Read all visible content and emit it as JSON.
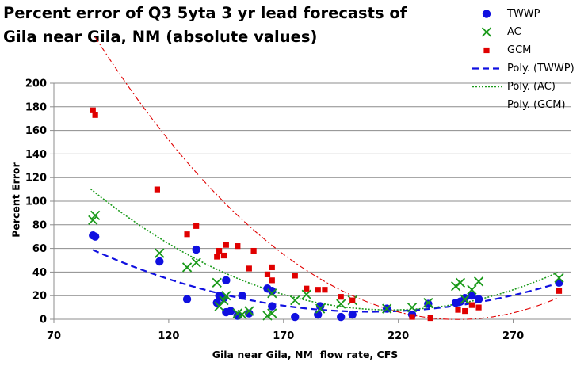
{
  "chart_data": {
    "type": "scatter",
    "title": "Percent error of Q3 5yta 3 yr lead forecasts of Gila near Gila, NM (absolute values)",
    "xlabel": "Gila near Gila, NM  flow rate, CFS",
    "ylabel": "Percent Error",
    "xlim": [
      70,
      295
    ],
    "ylim": [
      0,
      200
    ],
    "xticks": [
      70,
      120,
      170,
      220,
      270
    ],
    "yticks": [
      0,
      20,
      40,
      60,
      80,
      100,
      120,
      140,
      160,
      180,
      200
    ],
    "grid": "horizontal",
    "legend_position": "top-right",
    "series": [
      {
        "name": "TWWP",
        "marker": "circle",
        "color": "#1010e0",
        "points": [
          [
            87,
            71
          ],
          [
            88,
            70
          ],
          [
            116,
            49
          ],
          [
            128,
            17
          ],
          [
            132,
            59
          ],
          [
            141,
            14
          ],
          [
            142,
            20
          ],
          [
            144,
            18
          ],
          [
            145,
            33
          ],
          [
            145,
            6
          ],
          [
            147,
            7
          ],
          [
            150,
            3
          ],
          [
            152,
            20
          ],
          [
            155,
            5
          ],
          [
            163,
            26
          ],
          [
            165,
            24
          ],
          [
            165,
            11
          ],
          [
            175,
            2
          ],
          [
            185,
            4
          ],
          [
            186,
            11
          ],
          [
            195,
            2
          ],
          [
            200,
            4
          ],
          [
            215,
            9
          ],
          [
            226,
            4
          ],
          [
            233,
            13
          ],
          [
            245,
            14
          ],
          [
            247,
            15
          ],
          [
            249,
            18
          ],
          [
            252,
            20
          ],
          [
            255,
            17
          ],
          [
            290,
            31
          ]
        ]
      },
      {
        "name": "AC",
        "marker": "x",
        "color": "#1a9a1a",
        "points": [
          [
            87,
            84
          ],
          [
            88,
            88
          ],
          [
            116,
            56
          ],
          [
            128,
            44
          ],
          [
            132,
            48
          ],
          [
            141,
            31
          ],
          [
            142,
            11
          ],
          [
            144,
            16
          ],
          [
            145,
            20
          ],
          [
            150,
            5
          ],
          [
            152,
            4
          ],
          [
            155,
            7
          ],
          [
            163,
            3
          ],
          [
            165,
            5
          ],
          [
            165,
            22
          ],
          [
            175,
            16
          ],
          [
            180,
            21
          ],
          [
            186,
            9
          ],
          [
            195,
            13
          ],
          [
            200,
            16
          ],
          [
            215,
            9
          ],
          [
            226,
            10
          ],
          [
            233,
            14
          ],
          [
            245,
            28
          ],
          [
            247,
            31
          ],
          [
            249,
            17
          ],
          [
            252,
            25
          ],
          [
            255,
            32
          ],
          [
            290,
            35
          ]
        ]
      },
      {
        "name": "GCM",
        "marker": "square",
        "color": "#e00000",
        "points": [
          [
            87,
            177
          ],
          [
            88,
            173
          ],
          [
            115,
            110
          ],
          [
            128,
            72
          ],
          [
            132,
            79
          ],
          [
            141,
            53
          ],
          [
            142,
            58
          ],
          [
            144,
            54
          ],
          [
            145,
            63
          ],
          [
            150,
            62
          ],
          [
            155,
            43
          ],
          [
            157,
            58
          ],
          [
            163,
            38
          ],
          [
            165,
            44
          ],
          [
            165,
            33
          ],
          [
            175,
            37
          ],
          [
            180,
            26
          ],
          [
            185,
            25
          ],
          [
            188,
            25
          ],
          [
            195,
            19
          ],
          [
            200,
            16
          ],
          [
            226,
            2
          ],
          [
            234,
            1
          ],
          [
            246,
            8
          ],
          [
            249,
            7
          ],
          [
            252,
            12
          ],
          [
            255,
            10
          ],
          [
            290,
            24
          ]
        ]
      }
    ],
    "trendlines": [
      {
        "name": "Poly. (TWWP)",
        "style": "dashed",
        "color": "#1010e0",
        "coef": [
          0.0036,
          -1.495,
          161.6
        ],
        "xrange": [
          87,
          290
        ]
      },
      {
        "name": "Poly. (AC)",
        "style": "dotted",
        "color": "#1a9a1a",
        "coef": [
          0.006,
          -2.6,
          289.6
        ],
        "xrange": [
          86,
          290
        ]
      },
      {
        "name": "Poly. (GCM)",
        "style": "dashdot",
        "color": "#e00000",
        "coef": [
          0.0096,
          -4.72,
          580.0
        ],
        "xrange": [
          88,
          290
        ]
      }
    ]
  }
}
